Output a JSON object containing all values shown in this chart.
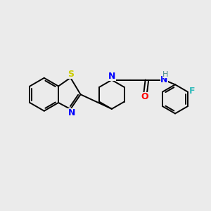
{
  "bg_color": "#ebebeb",
  "bond_color": "#000000",
  "S_color": "#cccc00",
  "N_color": "#0000ff",
  "O_color": "#ff0000",
  "F_color": "#33bbbb",
  "H_color": "#448888",
  "figsize": [
    3.0,
    3.0
  ],
  "dpi": 100,
  "lw": 1.4,
  "xlim": [
    0,
    10
  ],
  "ylim": [
    0,
    10
  ]
}
